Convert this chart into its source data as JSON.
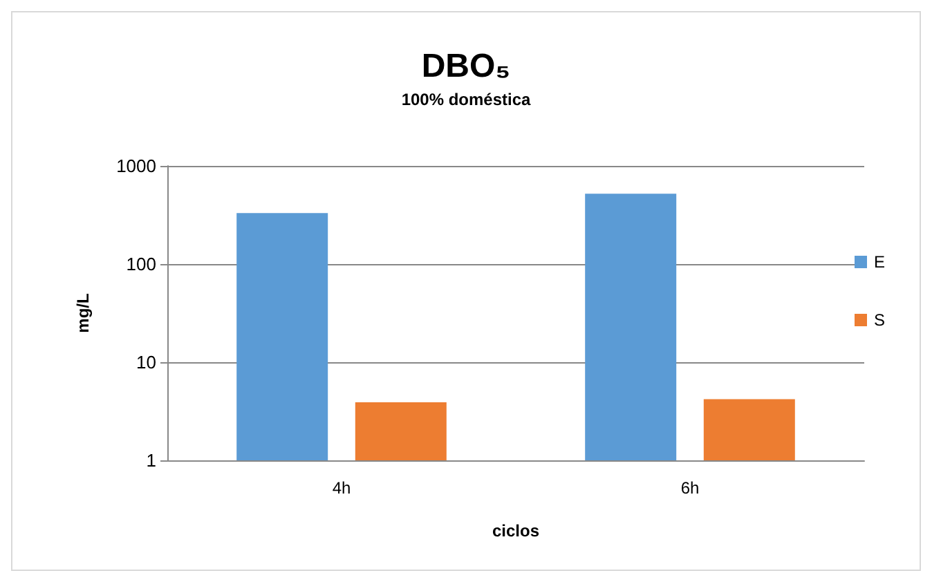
{
  "chart_data": {
    "type": "bar",
    "title": "DBO₅",
    "subtitle": "100% doméstica",
    "xlabel": "ciclos",
    "ylabel": "mg/L",
    "categories": [
      "4h",
      "6h"
    ],
    "series": [
      {
        "name": "E",
        "color": "#5b9bd5",
        "values": [
          330,
          520
        ]
      },
      {
        "name": "S",
        "color": "#ed7d31",
        "values": [
          3.9,
          4.2
        ]
      }
    ],
    "log": "y",
    "ylim": [
      1,
      1000
    ],
    "yticks": [
      1,
      10,
      100,
      1000
    ],
    "grid": "y",
    "legend": "right"
  }
}
